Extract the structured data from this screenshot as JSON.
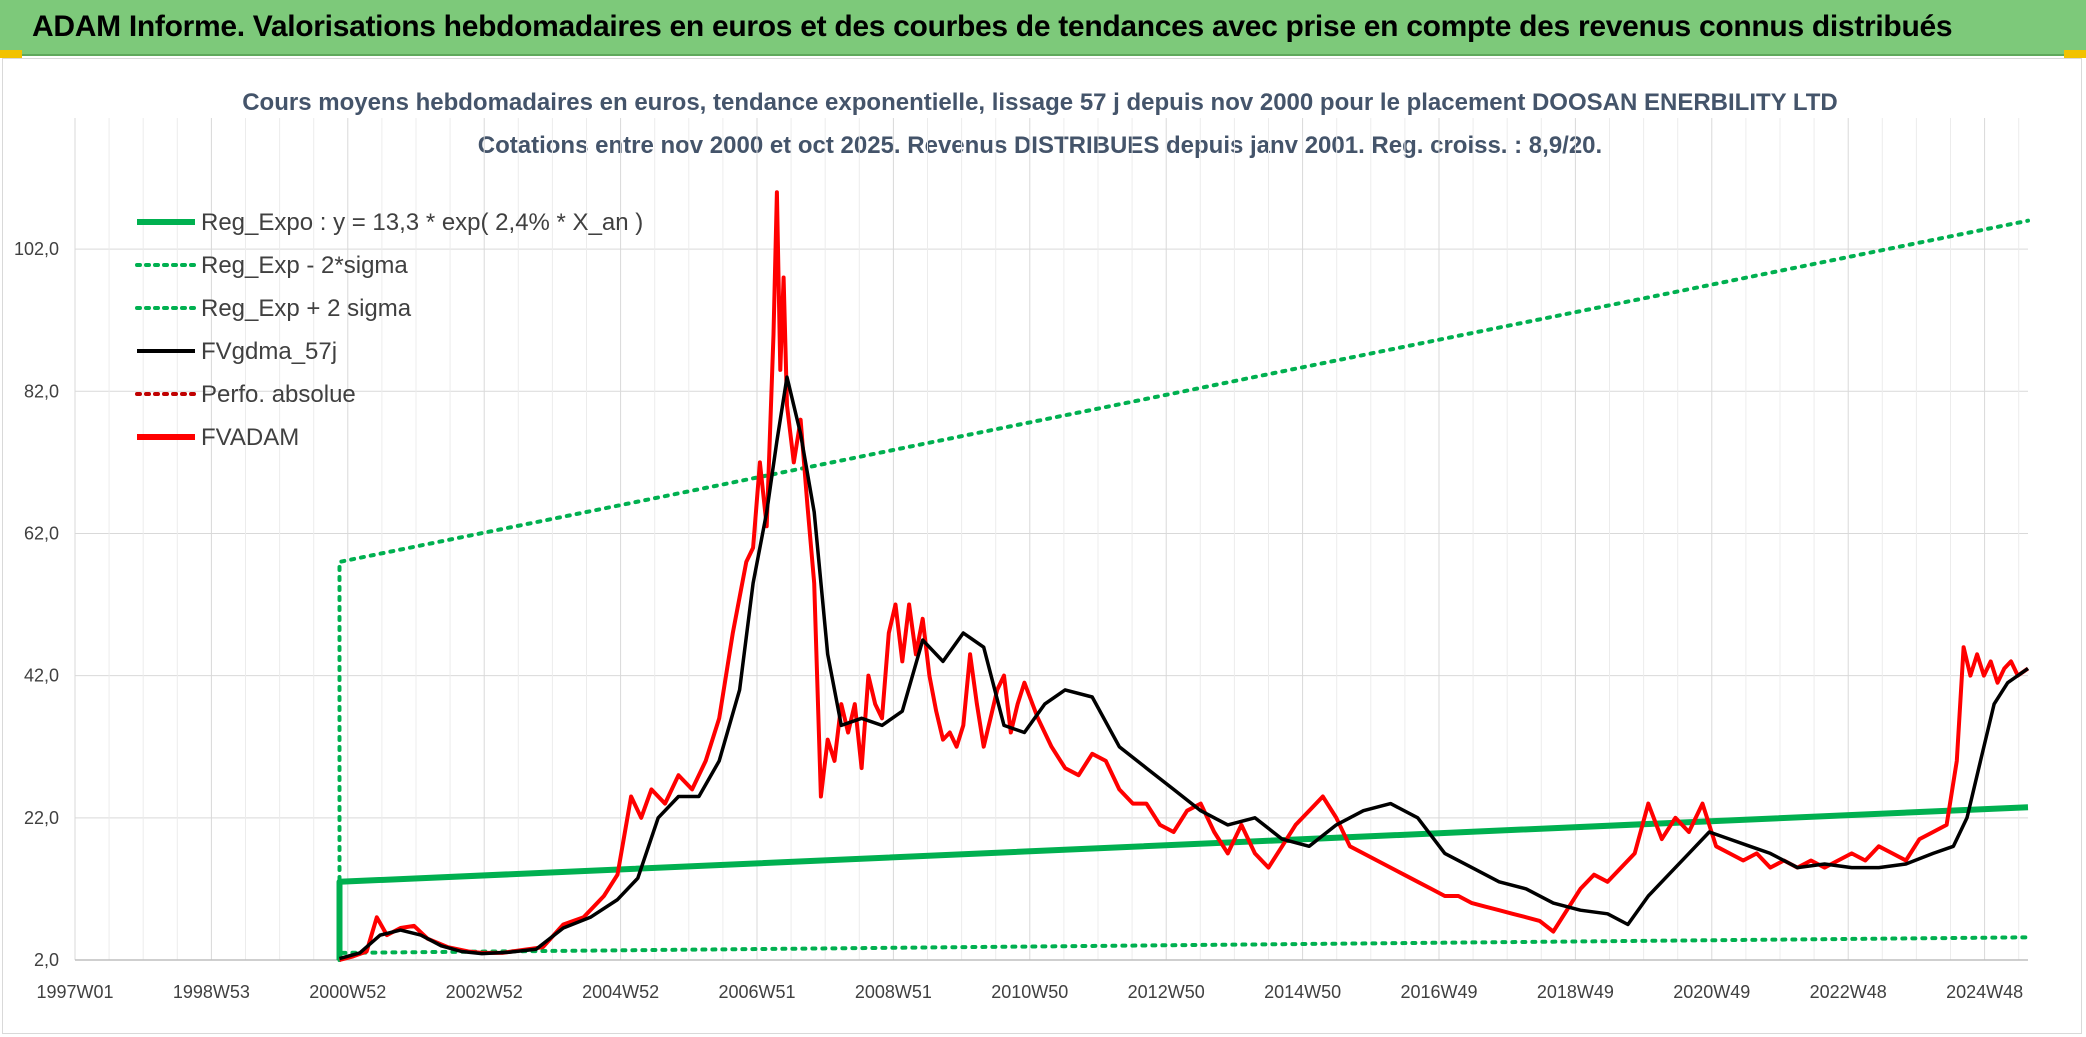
{
  "header": {
    "title": "ADAM Informe. Valorisations hebdomadaires en euros et des courbes de tendances avec prise en compte des revenus connus distribués"
  },
  "colors": {
    "header_bg": "#7dc97a",
    "green": "#00b050",
    "black": "#000000",
    "red": "#ff0000",
    "grid": "#d9d9d9"
  },
  "chart_data": {
    "type": "line",
    "title": "Cours moyens hebdomadaires en euros, tendance exponentielle, lissage 57 j depuis nov 2000 pour le placement DOOSAN ENERBILITY LTD",
    "subtitle": "Cotations entre nov 2000 et oct 2025. Revenus DISTRIBUES depuis janv 2001. Reg. croiss. : 8,9/20.",
    "x_tick_labels": [
      "1997W01",
      "1998W53",
      "2000W52",
      "2002W52",
      "2004W52",
      "2006W51",
      "2008W51",
      "2010W50",
      "2012W50",
      "2014W50",
      "2016W49",
      "2018W49",
      "2020W49",
      "2022W48",
      "2024W48"
    ],
    "x_range": [
      1997.0,
      2025.8
    ],
    "y_tick_labels": [
      "2,0",
      "22,0",
      "42,0",
      "62,0",
      "82,0",
      "102,0"
    ],
    "ylim": [
      2,
      112
    ],
    "grid": true,
    "legend_position": "top-left",
    "legend": [
      {
        "name": "Reg_Expo : y = 13,3 * exp( 2,4% *  X_an )",
        "color": "#00b050",
        "style": "solid-thick"
      },
      {
        "name": "Reg_Exp - 2*sigma",
        "color": "#00b050",
        "style": "dotted"
      },
      {
        "name": "Reg_Exp + 2 sigma",
        "color": "#00b050",
        "style": "dotted"
      },
      {
        "name": "FVgdma_57j",
        "color": "#000000",
        "style": "solid"
      },
      {
        "name": "Perfo. absolue",
        "color": "#c00000",
        "style": "dotted"
      },
      {
        "name": "FVADAM",
        "color": "#ff0000",
        "style": "solid-thick"
      }
    ],
    "series": [
      {
        "name": "Reg_Expo : y = 13,3 * exp( 2,4% *  X_an )",
        "x": [
          2000.9,
          2000.9,
          2025.8
        ],
        "y": [
          2.0,
          13.0,
          23.5
        ]
      },
      {
        "name": "Reg_Exp - 2*sigma",
        "x": [
          2000.9,
          2000.9,
          2025.8
        ],
        "y": [
          2.0,
          3.0,
          5.2
        ]
      },
      {
        "name": "Reg_Exp + 2 sigma",
        "x": [
          2000.9,
          2000.9,
          2025.8
        ],
        "y": [
          2.0,
          58.0,
          106.0
        ]
      },
      {
        "name": "FVgdma_57j",
        "x": [
          2000.9,
          2001.2,
          2001.5,
          2001.8,
          2002.1,
          2002.4,
          2002.7,
          2003.0,
          2003.4,
          2003.8,
          2004.2,
          2004.6,
          2005.0,
          2005.3,
          2005.6,
          2005.9,
          2006.2,
          2006.5,
          2006.8,
          2007.0,
          2007.2,
          2007.35,
          2007.5,
          2007.7,
          2007.9,
          2008.1,
          2008.3,
          2008.6,
          2008.9,
          2009.2,
          2009.5,
          2009.8,
          2010.1,
          2010.4,
          2010.7,
          2011.0,
          2011.3,
          2011.6,
          2012.0,
          2012.4,
          2012.8,
          2013.2,
          2013.6,
          2014.0,
          2014.4,
          2014.8,
          2015.2,
          2015.6,
          2016.0,
          2016.4,
          2016.8,
          2017.2,
          2017.6,
          2018.0,
          2018.4,
          2018.8,
          2019.2,
          2019.6,
          2019.9,
          2020.2,
          2020.5,
          2020.8,
          2021.1,
          2021.4,
          2021.7,
          2022.0,
          2022.4,
          2022.8,
          2023.2,
          2023.6,
          2024.0,
          2024.4,
          2024.7,
          2024.9,
          2025.1,
          2025.3,
          2025.5,
          2025.8
        ],
        "y": [
          2.2,
          3.0,
          5.5,
          6.2,
          5.5,
          4.0,
          3.2,
          2.9,
          3.1,
          3.5,
          6.5,
          8.0,
          10.5,
          13.5,
          22.0,
          25.0,
          25.0,
          30.0,
          40.0,
          55.0,
          65.0,
          75.0,
          84.0,
          76.0,
          65.0,
          45.0,
          35.0,
          36.0,
          35.0,
          37.0,
          47.0,
          44.0,
          48.0,
          46.0,
          35.0,
          34.0,
          38.0,
          40.0,
          39.0,
          32.0,
          29.0,
          26.0,
          23.0,
          21.0,
          22.0,
          19.0,
          18.0,
          21.0,
          23.0,
          24.0,
          22.0,
          17.0,
          15.0,
          13.0,
          12.0,
          10.0,
          9.0,
          8.5,
          7.0,
          11.0,
          14.0,
          17.0,
          20.0,
          19.0,
          18.0,
          17.0,
          15.0,
          15.5,
          15.0,
          15.0,
          15.5,
          17.0,
          18.0,
          22.0,
          30.0,
          38.0,
          41.0,
          43.0
        ]
      },
      {
        "name": "FVADAM",
        "x": [
          2000.9,
          2001.1,
          2001.3,
          2001.45,
          2001.6,
          2001.8,
          2002.0,
          2002.2,
          2002.5,
          2002.8,
          2003.0,
          2003.3,
          2003.6,
          2003.9,
          2004.2,
          2004.5,
          2004.8,
          2005.0,
          2005.2,
          2005.35,
          2005.5,
          2005.7,
          2005.9,
          2006.1,
          2006.3,
          2006.5,
          2006.7,
          2006.9,
          2007.0,
          2007.1,
          2007.2,
          2007.3,
          2007.35,
          2007.4,
          2007.45,
          2007.5,
          2007.6,
          2007.7,
          2007.8,
          2007.9,
          2008.0,
          2008.1,
          2008.2,
          2008.3,
          2008.4,
          2008.5,
          2008.6,
          2008.7,
          2008.8,
          2008.9,
          2009.0,
          2009.1,
          2009.2,
          2009.3,
          2009.4,
          2009.5,
          2009.6,
          2009.7,
          2009.8,
          2009.9,
          2010.0,
          2010.1,
          2010.2,
          2010.3,
          2010.4,
          2010.5,
          2010.6,
          2010.7,
          2010.8,
          2010.9,
          2011.0,
          2011.2,
          2011.4,
          2011.6,
          2011.8,
          2012.0,
          2012.2,
          2012.4,
          2012.6,
          2012.8,
          2013.0,
          2013.2,
          2013.4,
          2013.6,
          2013.8,
          2014.0,
          2014.2,
          2014.4,
          2014.6,
          2014.8,
          2015.0,
          2015.2,
          2015.4,
          2015.6,
          2015.8,
          2016.0,
          2016.2,
          2016.4,
          2016.6,
          2016.8,
          2017.0,
          2017.2,
          2017.4,
          2017.6,
          2017.8,
          2018.0,
          2018.2,
          2018.4,
          2018.6,
          2018.8,
          2019.0,
          2019.2,
          2019.4,
          2019.6,
          2019.8,
          2020.0,
          2020.2,
          2020.4,
          2020.6,
          2020.8,
          2021.0,
          2021.2,
          2021.4,
          2021.6,
          2021.8,
          2022.0,
          2022.2,
          2022.4,
          2022.6,
          2022.8,
          2023.0,
          2023.2,
          2023.4,
          2023.6,
          2023.8,
          2024.0,
          2024.2,
          2024.4,
          2024.6,
          2024.75,
          2024.85,
          2024.95,
          2025.05,
          2025.15,
          2025.25,
          2025.35,
          2025.45,
          2025.55,
          2025.65,
          2025.8
        ],
        "y": [
          2.0,
          2.5,
          3.2,
          8.0,
          5.5,
          6.5,
          6.8,
          5.0,
          3.8,
          3.2,
          3.0,
          3.0,
          3.4,
          3.8,
          7.0,
          8.0,
          11.0,
          14.0,
          25.0,
          22.0,
          26.0,
          24.0,
          28.0,
          26.0,
          30.0,
          36.0,
          48.0,
          58.0,
          60.0,
          72.0,
          63.0,
          90.0,
          110.0,
          85.0,
          98.0,
          80.0,
          72.0,
          78.0,
          66.0,
          55.0,
          25.0,
          33.0,
          30.0,
          38.0,
          34.0,
          38.0,
          29.0,
          42.0,
          38.0,
          36.0,
          48.0,
          52.0,
          44.0,
          52.0,
          45.0,
          50.0,
          42.0,
          37.0,
          33.0,
          34.0,
          32.0,
          35.0,
          45.0,
          38.0,
          32.0,
          36.0,
          40.0,
          42.0,
          34.0,
          38.0,
          41.0,
          36.0,
          32.0,
          29.0,
          28.0,
          31.0,
          30.0,
          26.0,
          24.0,
          24.0,
          21.0,
          20.0,
          23.0,
          24.0,
          20.0,
          17.0,
          21.0,
          17.0,
          15.0,
          18.0,
          21.0,
          23.0,
          25.0,
          22.0,
          18.0,
          17.0,
          16.0,
          15.0,
          14.0,
          13.0,
          12.0,
          11.0,
          11.0,
          10.0,
          9.5,
          9.0,
          8.5,
          8.0,
          7.5,
          6.0,
          9.0,
          12.0,
          14.0,
          13.0,
          15.0,
          17.0,
          24.0,
          19.0,
          22.0,
          20.0,
          24.0,
          18.0,
          17.0,
          16.0,
          17.0,
          15.0,
          16.0,
          15.0,
          16.0,
          15.0,
          16.0,
          17.0,
          16.0,
          18.0,
          17.0,
          16.0,
          19.0,
          20.0,
          21.0,
          30.0,
          46.0,
          42.0,
          45.0,
          42.0,
          44.0,
          41.0,
          43.0,
          44.0,
          42.0,
          43.0
        ]
      }
    ]
  }
}
